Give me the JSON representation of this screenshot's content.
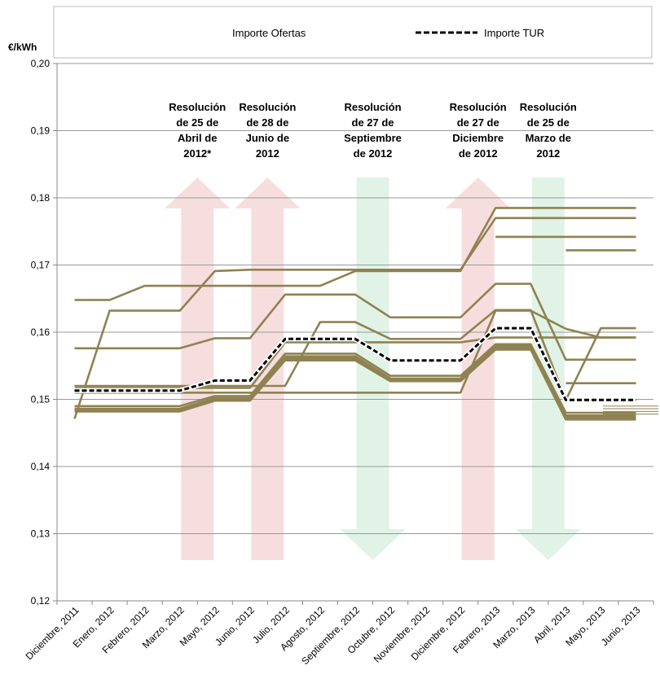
{
  "chart_data": {
    "type": "line",
    "unit_label": "€/kWh",
    "ylim": [
      0.12,
      0.2
    ],
    "y_ticks": [
      "0,12",
      "0,13",
      "0,14",
      "0,15",
      "0,16",
      "0,17",
      "0,18",
      "0,19",
      "0,20"
    ],
    "categories": [
      "Diciembre, 2011",
      "Enero, 2012",
      "Febrero, 2012",
      "Marzo, 2012",
      "Mayo, 2012",
      "Junio, 2012",
      "Julio, 2012",
      "Agosto, 2012",
      "Septiembre, 2012",
      "Octubre, 2012",
      "Noviembre, 2012",
      "Diciembre, 2012",
      "Febrero, 2013",
      "Marzo, 2013",
      "Abril, 2013",
      "Mayo, 2013",
      "Junio, 2013"
    ],
    "grid": true,
    "legend": {
      "position": "top",
      "entries": [
        "Importe Ofertas",
        "Importe TUR"
      ]
    },
    "colors": {
      "ofertas": "#8f8252",
      "tur": "#000000",
      "up_arrow": "#f7dede",
      "down_arrow": "#e0f3e6",
      "grid": "#999999"
    },
    "tur": {
      "name": "Importe TUR",
      "values": [
        0.1513,
        0.1513,
        0.1513,
        0.1513,
        0.1528,
        0.1528,
        0.159,
        0.159,
        0.159,
        0.1558,
        0.1558,
        0.1558,
        0.1606,
        0.1606,
        0.1499,
        0.1499,
        0.1499
      ]
    },
    "ofertas_label": "Importe Ofertas",
    "ofertas": [
      [
        0.1648,
        0.1648,
        0.1669,
        0.1669,
        0.1669,
        0.1669,
        0.1669,
        0.1669,
        0.1691,
        0.1691,
        0.1691,
        0.1691,
        0.1785,
        0.1785,
        0.1785,
        0.1785,
        0.1785
      ],
      [
        0.1471,
        0.1632,
        0.1632,
        0.1632,
        0.1691,
        0.1693,
        0.1693,
        0.1693,
        0.1693,
        0.1693,
        0.1693,
        0.1693,
        0.177,
        0.177,
        0.177,
        0.177,
        0.177
      ],
      [
        0.1576,
        0.1576,
        0.1576,
        0.1576,
        0.1591,
        0.1591,
        0.1656,
        0.1656,
        0.1656,
        0.1622,
        0.1622,
        0.1622,
        0.1672,
        0.1672,
        0.1559,
        0.1559,
        0.1559
      ],
      [
        0.152,
        0.152,
        0.152,
        0.152,
        0.152,
        0.152,
        0.152,
        0.1615,
        0.1615,
        0.159,
        0.159,
        0.159,
        0.1633,
        0.1633,
        0.1499,
        0.1606,
        0.1606
      ],
      [
        0.149,
        0.149,
        0.149,
        0.149,
        0.1505,
        0.1505,
        0.1568,
        0.1568,
        0.1568,
        0.1535,
        0.1535,
        0.1535,
        0.1582,
        0.1582,
        0.148,
        0.148,
        0.148
      ],
      [
        0.1486,
        0.1486,
        0.1486,
        0.1486,
        0.1502,
        0.1502,
        0.1564,
        0.1564,
        0.1564,
        0.1531,
        0.1531,
        0.1531,
        0.1579,
        0.1579,
        0.1476,
        0.1476,
        0.1476
      ],
      [
        0.1484,
        0.1484,
        0.1484,
        0.1484,
        0.15,
        0.15,
        0.1561,
        0.1561,
        0.1561,
        0.1529,
        0.1529,
        0.1529,
        0.1576,
        0.1576,
        0.1473,
        0.1473,
        0.1473
      ],
      [
        0.1482,
        0.1482,
        0.1482,
        0.1482,
        0.1498,
        0.1498,
        0.1558,
        0.1558,
        0.1558,
        0.1527,
        0.1527,
        0.1527,
        0.1574,
        0.1574,
        0.147,
        0.147,
        0.147
      ],
      [
        0.1517,
        0.1517,
        0.1517,
        0.1517,
        0.1517,
        0.1517,
        0.1585,
        0.1585,
        0.1585,
        0.1585,
        0.1585,
        0.1585,
        0.1592,
        0.1592,
        0.1592,
        0.1592,
        0.1592
      ],
      [
        0.151,
        0.151,
        0.151,
        0.151,
        0.151,
        0.151,
        0.151,
        0.151,
        0.151,
        0.151,
        0.151,
        0.151,
        0.1632,
        0.1632,
        0.1605,
        0.1592,
        0.1592
      ],
      [
        null,
        null,
        null,
        null,
        null,
        null,
        null,
        null,
        null,
        null,
        null,
        null,
        0.1742,
        0.1742,
        0.1742,
        0.1742,
        0.1742
      ],
      [
        null,
        null,
        null,
        null,
        null,
        null,
        null,
        null,
        null,
        null,
        null,
        null,
        null,
        null,
        0.1722,
        0.1722,
        0.1722
      ],
      [
        null,
        null,
        null,
        null,
        null,
        null,
        null,
        null,
        null,
        null,
        null,
        null,
        null,
        null,
        0.1524,
        0.1524,
        0.1524
      ]
    ],
    "annotations": [
      {
        "lines": [
          "Resolución",
          "de 25 de",
          "Abril de",
          "2012*"
        ],
        "direction": "up"
      },
      {
        "lines": [
          "Resolución",
          "de 28 de",
          "Junio de",
          "2012"
        ],
        "direction": "up"
      },
      {
        "lines": [
          "Resolución",
          "de 27 de",
          "Septiembre",
          "de 2012"
        ],
        "direction": "down"
      },
      {
        "lines": [
          "Resolución",
          "de 27 de",
          "Diciembre",
          "de 2012"
        ],
        "direction": "up"
      },
      {
        "lines": [
          "Resolución",
          "de 25 de",
          "Marzo de",
          "2012"
        ],
        "direction": "down"
      }
    ]
  }
}
